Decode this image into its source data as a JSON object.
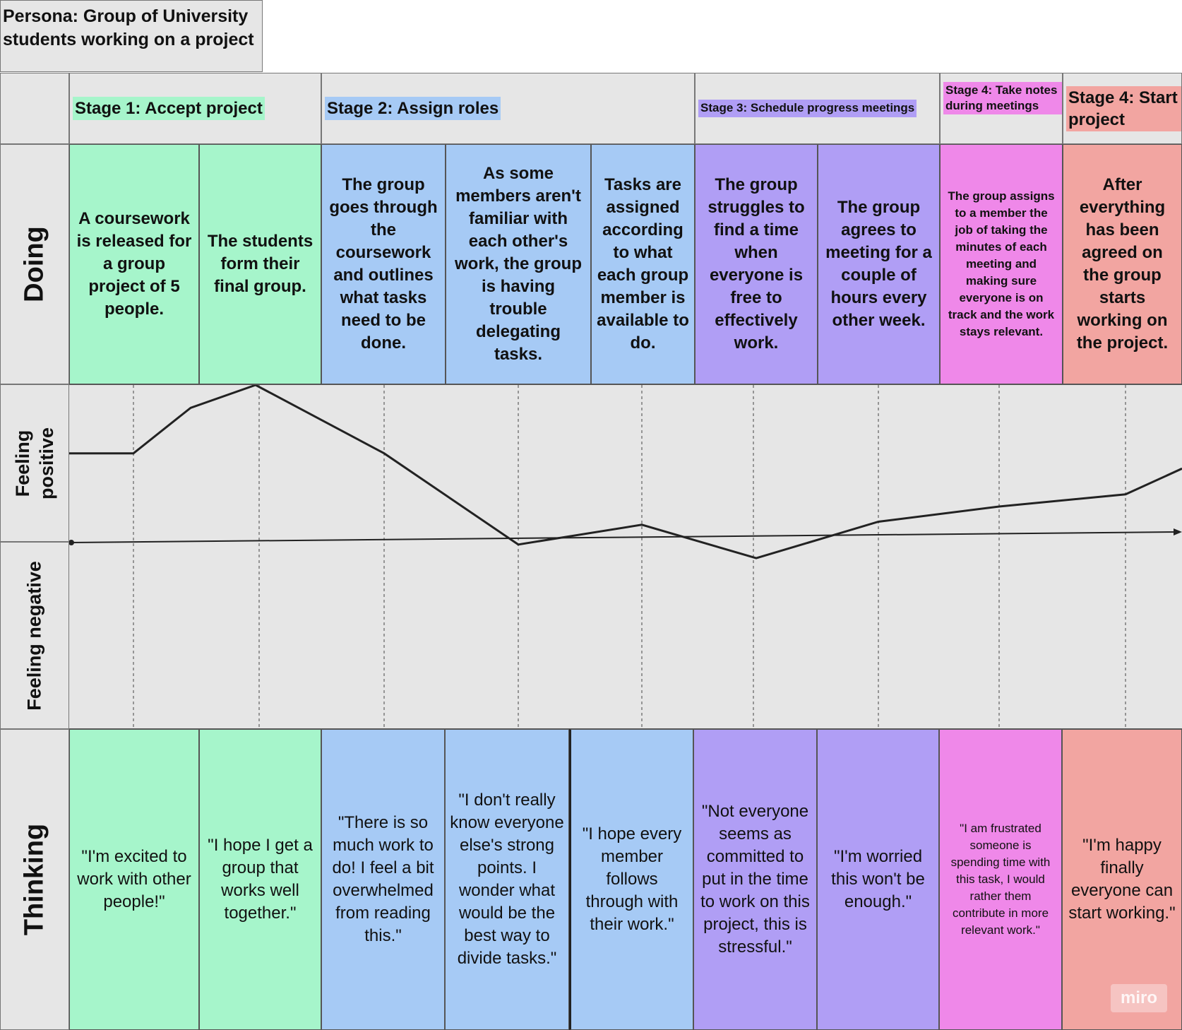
{
  "persona": "Persona: Group of University students working on a project",
  "stages": [
    {
      "label": "Stage 1: Accept project",
      "color": "#a6f5cb"
    },
    {
      "label": "Stage 2: Assign roles",
      "color": "#a6caf5"
    },
    {
      "label": "Stage 3: Schedule progress meetings",
      "color": "#b09ef5"
    },
    {
      "label": "Stage 4: Take notes during meetings",
      "color": "#ef88e9"
    },
    {
      "label": "Stage 4: Start project",
      "color": "#f2a5a1"
    }
  ],
  "rows": {
    "doing": "Doing",
    "feeling_positive": "Feeling positive",
    "feeling_negative": "Feeling negative",
    "thinking": "Thinking"
  },
  "doing": [
    "A coursework is released for a group project of 5 people.",
    "The students form their final group.",
    "The group goes through the coursework and outlines what tasks need to be done.",
    "As some members aren't familiar with each other's work, the group is having trouble delegating tasks.",
    "Tasks are assigned according to what each group member is available to do.",
    "The group struggles to find a time when everyone is free to effectively work.",
    "The group agrees to meeting for a couple of hours every other week.",
    "The group assigns to a member the job of taking the minutes of each meeting and making sure everyone is on track and the work stays relevant.",
    "After everything has been agreed on the group starts working on the project."
  ],
  "thinking": [
    "\"I'm excited to work with other people!\"",
    "\"I hope I get a group that works well together.\"",
    "\"There is so much work to do! I feel a bit overwhelmed from reading this.\"",
    "\"I don't really know everyone else's strong points. I wonder what would be the best way to divide tasks.\"",
    "\"I hope every member follows through with their work.\"",
    "\"Not everyone seems as committed to put in the time to work on this project, this is stressful.\"",
    "\"I'm worried this won't be enough.\"",
    "\"I am frustrated someone is spending time with this task, I would rather them contribute in more relevant work.\"",
    "\"I'm happy finally everyone can start working.\""
  ],
  "emotion_curve": {
    "description_scale": "positive above zero, negative below zero",
    "step_values": [
      0.55,
      0.72,
      0.55,
      -0.05,
      0.08,
      -0.14,
      0.1,
      0.2,
      0.28
    ],
    "extra_points": {
      "start": 0.55,
      "peak_between_1_and_2": 1.0,
      "mid_1_2": 0.85,
      "end": 0.45
    }
  },
  "watermark": "miro"
}
